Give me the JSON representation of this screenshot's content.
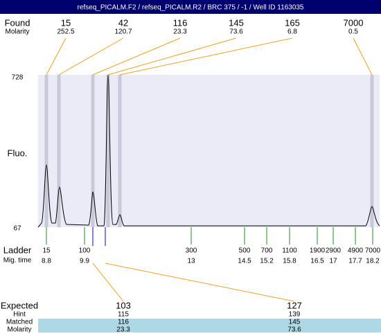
{
  "header": {
    "title": "refseq_PICALM.F2 / refseq_PICALM.R2 / BRC 375 / -1 / Well ID 1163035"
  },
  "found": {
    "label": "Found",
    "molarity_label": "Molarity",
    "peaks": [
      {
        "size": "15",
        "molarity": "252.5"
      },
      {
        "size": "42",
        "molarity": "120.7"
      },
      {
        "size": "116",
        "molarity": "23.3"
      },
      {
        "size": "145",
        "molarity": "73.6"
      },
      {
        "size": "165",
        "molarity": "6.8"
      },
      {
        "size": "7000",
        "molarity": "0.5"
      }
    ]
  },
  "axis": {
    "label": "Fluo.",
    "max": "728",
    "min": "67"
  },
  "ladder": {
    "label": "Ladder",
    "time_label": "Mig. time",
    "sizes": [
      "15",
      "100",
      "300",
      "500",
      "700",
      "1100",
      "1900",
      "2900",
      "4900",
      "7000"
    ],
    "times": [
      "8.8",
      "9.9",
      "13",
      "14.5",
      "15.2",
      "15.8",
      "16.5",
      "17",
      "17.7",
      "18.2"
    ]
  },
  "expected": {
    "label": "Expected",
    "hint_label": "Hint",
    "matched_label": "Matched",
    "molarity_label": "Molarity",
    "columns": [
      {
        "expected": "103",
        "hint": "115",
        "matched": "116",
        "molarity": "23.3"
      },
      {
        "expected": "127",
        "hint": "139",
        "matched": "145",
        "molarity": "73.6"
      }
    ]
  }
}
